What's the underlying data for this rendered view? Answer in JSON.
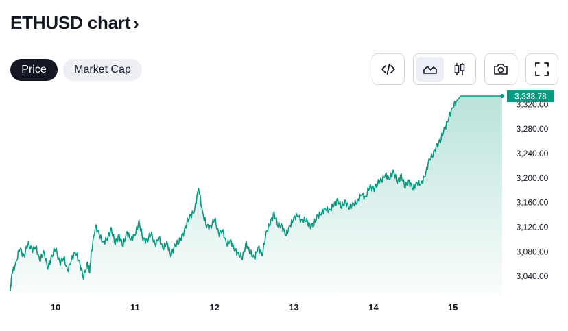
{
  "header": {
    "title": "ETHUSD chart",
    "chevron": "›"
  },
  "tabs": [
    {
      "label": "Price"
    },
    {
      "label": "Market Cap"
    }
  ],
  "toolbar": {
    "embed_icon": "code-icon",
    "area_icon": "area-chart-icon",
    "candles_icon": "candlestick-icon",
    "snapshot_icon": "camera-icon",
    "fullscreen_icon": "fullscreen-icon"
  },
  "colors": {
    "line": "#089981",
    "accent_label": "#089981",
    "text": "#131722"
  },
  "chart_data": {
    "type": "area",
    "title": "",
    "xlabel": "",
    "ylabel": "",
    "x_tick_labels": [
      "10",
      "11",
      "12",
      "13",
      "14",
      "15"
    ],
    "y_tick_labels": [
      "3,040.00",
      "3,080.00",
      "3,120.00",
      "3,160.00",
      "3,200.00",
      "3,240.00",
      "3,280.00",
      "3,320.00"
    ],
    "ylim": [
      3010,
      3345
    ],
    "xlim": [
      9.43,
      15.62
    ],
    "last_value": 3333.78,
    "last_value_label": "3,333.78",
    "series": [
      {
        "x": [
          9.43,
          9.45,
          9.5,
          9.55,
          9.6,
          9.65,
          9.7,
          9.75,
          9.8,
          9.85,
          9.9,
          9.95,
          10.0,
          10.05,
          10.1,
          10.15,
          10.2,
          10.25,
          10.3,
          10.35,
          10.4,
          10.43,
          10.45,
          10.5,
          10.55,
          10.6,
          10.65,
          10.7,
          10.75,
          10.8,
          10.85,
          10.9,
          10.95,
          11.0,
          11.05,
          11.1,
          11.15,
          11.2,
          11.25,
          11.3,
          11.35,
          11.4,
          11.45,
          11.5,
          11.55,
          11.6,
          11.65,
          11.7,
          11.75,
          11.8,
          11.85,
          11.9,
          11.95,
          12.0,
          12.05,
          12.1,
          12.15,
          12.2,
          12.25,
          12.3,
          12.35,
          12.4,
          12.45,
          12.5,
          12.55,
          12.6,
          12.65,
          12.7,
          12.75,
          12.8,
          12.85,
          12.9,
          12.95,
          13.0,
          13.05,
          13.1,
          13.15,
          13.2,
          13.25,
          13.3,
          13.35,
          13.4,
          13.45,
          13.5,
          13.55,
          13.6,
          13.65,
          13.7,
          13.75,
          13.8,
          13.85,
          13.9,
          13.95,
          14.0,
          14.05,
          14.1,
          14.15,
          14.2,
          14.25,
          14.3,
          14.35,
          14.4,
          14.45,
          14.5,
          14.55,
          14.6,
          14.65,
          14.7,
          14.75,
          14.8,
          14.85,
          14.9,
          14.95,
          15.0,
          15.05,
          15.1,
          15.15,
          15.2,
          15.25,
          15.3,
          15.35,
          15.4,
          15.45,
          15.5,
          15.55,
          15.58,
          15.6,
          15.62
        ],
        "values": [
          3016,
          3045,
          3060,
          3088,
          3070,
          3095,
          3082,
          3090,
          3065,
          3080,
          3055,
          3070,
          3088,
          3060,
          3072,
          3048,
          3068,
          3080,
          3062,
          3040,
          3058,
          3050,
          3078,
          3122,
          3108,
          3094,
          3102,
          3115,
          3096,
          3104,
          3092,
          3111,
          3100,
          3108,
          3128,
          3102,
          3096,
          3112,
          3090,
          3104,
          3085,
          3095,
          3075,
          3088,
          3098,
          3105,
          3128,
          3138,
          3148,
          3185,
          3142,
          3124,
          3118,
          3136,
          3108,
          3116,
          3092,
          3098,
          3085,
          3075,
          3072,
          3092,
          3080,
          3068,
          3088,
          3075,
          3110,
          3128,
          3140,
          3125,
          3120,
          3108,
          3122,
          3135,
          3140,
          3128,
          3134,
          3120,
          3126,
          3138,
          3144,
          3150,
          3146,
          3158,
          3162,
          3155,
          3160,
          3152,
          3158,
          3161,
          3175,
          3166,
          3188,
          3180,
          3192,
          3196,
          3206,
          3199,
          3210,
          3195,
          3202,
          3188,
          3193,
          3184,
          3192,
          3190,
          3205,
          3228,
          3240,
          3252,
          3265,
          3281,
          3300,
          3316,
          3326,
          3333.78,
          3333.78,
          3333.78,
          3333.78,
          3333.78,
          3333.78,
          3333.78,
          3333.78,
          3333.78,
          3333.78,
          3333.78,
          3333.78,
          3333.78
        ]
      }
    ]
  }
}
